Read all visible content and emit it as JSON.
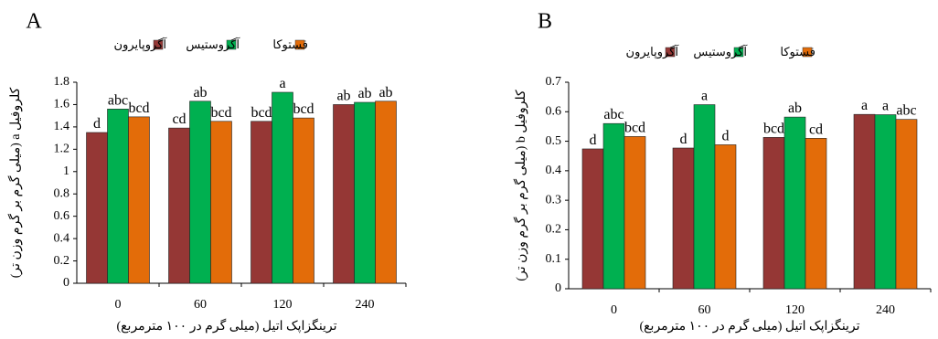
{
  "chart_data": [
    {
      "type": "bar",
      "panel_label": "A",
      "categories": [
        "0",
        "60",
        "120",
        "240"
      ],
      "series": [
        {
          "name": "آگروپایرون",
          "color": "#953735",
          "values": [
            1.35,
            1.39,
            1.45,
            1.6
          ]
        },
        {
          "name": "آگروستیس",
          "color": "#00b050",
          "values": [
            1.56,
            1.63,
            1.71,
            1.62
          ]
        },
        {
          "name": "فستوکا",
          "color": "#e36c09",
          "values": [
            1.49,
            1.45,
            1.48,
            1.63
          ]
        }
      ],
      "letters": [
        [
          "d",
          "abc",
          "bcd"
        ],
        [
          "cd",
          "ab",
          "bcd"
        ],
        [
          "bcd",
          "a",
          "bcd"
        ],
        [
          "ab",
          "ab",
          "ab"
        ]
      ],
      "ylim": [
        0,
        1.8
      ],
      "yticks": [
        "0",
        "0.2",
        "0.4",
        "0.6",
        "0.8",
        "1",
        "1.2",
        "1.4",
        "1.6",
        "1.8"
      ],
      "xlabel": "ترینگزاپک اتیل (میلی گرم در ۱۰۰ مترمربع)",
      "ylabel": "کلروفیل a (میلی گرم بر گرم وزن تر)",
      "legend_position": "top",
      "grid": false
    },
    {
      "type": "bar",
      "panel_label": "B",
      "categories": [
        "0",
        "60",
        "120",
        "240"
      ],
      "series": [
        {
          "name": "آگروپایرون",
          "color": "#953735",
          "values": [
            0.474,
            0.477,
            0.513,
            0.591
          ]
        },
        {
          "name": "آگروستیس",
          "color": "#00b050",
          "values": [
            0.56,
            0.624,
            0.582,
            0.59
          ]
        },
        {
          "name": "فستوکا",
          "color": "#e36c09",
          "values": [
            0.516,
            0.488,
            0.51,
            0.574
          ]
        }
      ],
      "letters": [
        [
          "d",
          "abc",
          "bcd"
        ],
        [
          "d",
          "a",
          "d"
        ],
        [
          "bcd",
          "ab",
          "cd"
        ],
        [
          "a",
          "a",
          "abc"
        ]
      ],
      "ylim": [
        0,
        0.7
      ],
      "yticks": [
        "0",
        "0.1",
        "0.2",
        "0.3",
        "0.4",
        "0.5",
        "0.6",
        "0.7"
      ],
      "xlabel": "ترینگزاپک اتیل (میلی گرم در ۱۰۰ مترمربع)",
      "ylabel": "کلروفیل b (میلی گرم بر گرم وزن تر)",
      "legend_position": "top",
      "grid": false
    }
  ]
}
